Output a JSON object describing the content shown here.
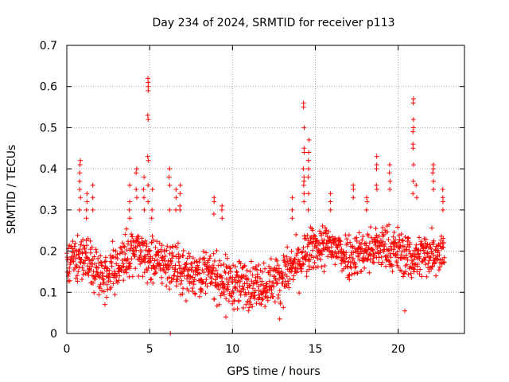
{
  "chart_data": {
    "type": "scatter",
    "title": "Day 234 of 2024, SRMTID for receiver p113",
    "xlabel": "GPS time / hours",
    "ylabel": "SRMTID / TECUs",
    "xlim": [
      0,
      24
    ],
    "ylim": [
      0,
      0.7
    ],
    "xticks": [
      0,
      5,
      10,
      15,
      20
    ],
    "yticks": [
      0,
      0.1,
      0.2,
      0.3,
      0.4,
      0.5,
      0.6,
      0.7
    ],
    "xtick_labels": [
      "0",
      "5",
      "10",
      "15",
      "20"
    ],
    "ytick_labels": [
      "0",
      "0.1",
      "0.2",
      "0.3",
      "0.4",
      "0.5",
      "0.6",
      "0.7"
    ],
    "grid": true,
    "marker": "+",
    "marker_color": "#ff0000",
    "frame_color": "#000000",
    "grid_color": "#a0a0a0",
    "baseline": [
      [
        0.0,
        0.17
      ],
      [
        1.0,
        0.19
      ],
      [
        2.0,
        0.14
      ],
      [
        3.0,
        0.16
      ],
      [
        4.0,
        0.2
      ],
      [
        5.0,
        0.18
      ],
      [
        6.0,
        0.17
      ],
      [
        7.0,
        0.15
      ],
      [
        8.0,
        0.15
      ],
      [
        9.0,
        0.14
      ],
      [
        10.0,
        0.12
      ],
      [
        11.0,
        0.12
      ],
      [
        12.0,
        0.12
      ],
      [
        13.0,
        0.14
      ],
      [
        14.0,
        0.17
      ],
      [
        15.0,
        0.21
      ],
      [
        16.0,
        0.21
      ],
      [
        17.0,
        0.19
      ],
      [
        18.0,
        0.2
      ],
      [
        19.0,
        0.21
      ],
      [
        20.0,
        0.2
      ],
      [
        21.0,
        0.18
      ],
      [
        22.0,
        0.2
      ],
      [
        22.8,
        0.2
      ]
    ],
    "spikes": [
      {
        "x": 0.8,
        "values": [
          0.35,
          0.37,
          0.39,
          0.41,
          0.42,
          0.33,
          0.3
        ]
      },
      {
        "x": 1.2,
        "values": [
          0.32,
          0.34,
          0.28,
          0.3
        ]
      },
      {
        "x": 1.6,
        "values": [
          0.33,
          0.36,
          0.3
        ]
      },
      {
        "x": 3.8,
        "values": [
          0.32,
          0.36,
          0.3,
          0.28
        ]
      },
      {
        "x": 4.2,
        "values": [
          0.35,
          0.39,
          0.4,
          0.33
        ]
      },
      {
        "x": 4.65,
        "values": [
          0.35,
          0.38,
          0.33,
          0.3
        ]
      },
      {
        "x": 4.9,
        "values": [
          0.6,
          0.61,
          0.62,
          0.59,
          0.53,
          0.52,
          0.43,
          0.42,
          0.36,
          0.32
        ]
      },
      {
        "x": 5.15,
        "values": [
          0.35,
          0.3,
          0.28
        ]
      },
      {
        "x": 6.2,
        "values": [
          0.38,
          0.4,
          0.36,
          0.3
        ]
      },
      {
        "x": 6.6,
        "values": [
          0.33,
          0.35,
          0.3
        ]
      },
      {
        "x": 6.85,
        "values": [
          0.36,
          0.34,
          0.31,
          0.3
        ]
      },
      {
        "x": 8.9,
        "values": [
          0.33,
          0.32,
          0.29
        ]
      },
      {
        "x": 9.35,
        "values": [
          0.31,
          0.3,
          0.28
        ]
      },
      {
        "x": 13.6,
        "values": [
          0.33,
          0.3,
          0.28
        ]
      },
      {
        "x": 14.3,
        "values": [
          0.56,
          0.55,
          0.5,
          0.45,
          0.44,
          0.4,
          0.38,
          0.37,
          0.36,
          0.34,
          0.32
        ]
      },
      {
        "x": 14.6,
        "values": [
          0.47,
          0.44,
          0.42,
          0.4,
          0.38,
          0.34,
          0.3
        ]
      },
      {
        "x": 15.9,
        "values": [
          0.34,
          0.32,
          0.3
        ]
      },
      {
        "x": 17.3,
        "values": [
          0.36,
          0.35,
          0.33
        ]
      },
      {
        "x": 18.1,
        "values": [
          0.33,
          0.32,
          0.3
        ]
      },
      {
        "x": 18.7,
        "values": [
          0.43,
          0.41,
          0.4,
          0.36,
          0.35
        ]
      },
      {
        "x": 19.5,
        "values": [
          0.41,
          0.39,
          0.37,
          0.35
        ]
      },
      {
        "x": 20.9,
        "values": [
          0.57,
          0.56,
          0.52,
          0.5,
          0.49,
          0.46,
          0.45,
          0.41,
          0.37,
          0.34
        ]
      },
      {
        "x": 21.1,
        "values": [
          0.36,
          0.33
        ]
      },
      {
        "x": 22.1,
        "values": [
          0.41,
          0.4,
          0.39,
          0.37,
          0.35
        ]
      },
      {
        "x": 22.7,
        "values": [
          0.35,
          0.33,
          0.32,
          0.3
        ]
      }
    ],
    "outliers": [
      [
        6.25,
        0.0
      ],
      [
        12.85,
        0.035
      ],
      [
        9.6,
        0.04
      ],
      [
        20.4,
        0.055
      ],
      [
        10.3,
        0.06
      ]
    ],
    "scatter_half_width": 0.06,
    "background_point_count": 1400
  }
}
